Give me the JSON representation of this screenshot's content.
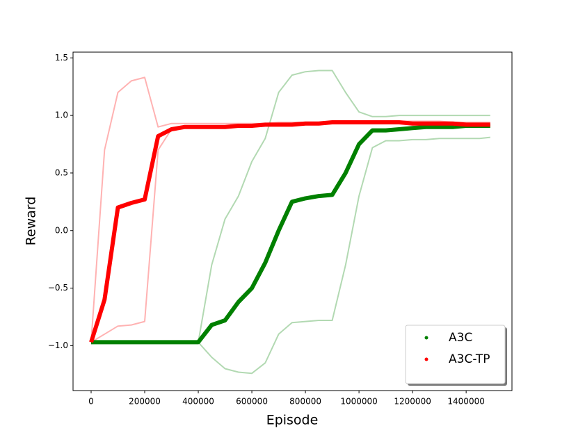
{
  "chart_data": {
    "type": "line",
    "xlabel": "Episode",
    "ylabel": "Reward",
    "x": [
      0,
      50000,
      100000,
      150000,
      200000,
      250000,
      300000,
      350000,
      400000,
      450000,
      500000,
      550000,
      600000,
      650000,
      700000,
      750000,
      800000,
      850000,
      900000,
      950000,
      1000000,
      1050000,
      1100000,
      1150000,
      1200000,
      1250000,
      1300000,
      1350000,
      1400000,
      1450000,
      1490000
    ],
    "series": [
      {
        "name": "A3C",
        "color": "#008000",
        "values": [
          -0.97,
          -0.97,
          -0.97,
          -0.97,
          -0.97,
          -0.97,
          -0.97,
          -0.97,
          -0.97,
          -0.82,
          -0.78,
          -0.62,
          -0.5,
          -0.28,
          0.0,
          0.25,
          0.28,
          0.3,
          0.31,
          0.5,
          0.75,
          0.87,
          0.87,
          0.88,
          0.89,
          0.9,
          0.9,
          0.9,
          0.91,
          0.91,
          0.91
        ],
        "upper": [
          -0.97,
          -0.97,
          -0.97,
          -0.97,
          -0.97,
          -0.97,
          -0.97,
          -0.97,
          -0.97,
          -0.3,
          0.1,
          0.3,
          0.6,
          0.8,
          1.2,
          1.35,
          1.38,
          1.39,
          1.39,
          1.2,
          1.03,
          0.99,
          0.99,
          1.0,
          1.0,
          1.0,
          1.0,
          1.0,
          1.0,
          1.0,
          1.0
        ],
        "lower": [
          -0.97,
          -0.97,
          -0.97,
          -0.97,
          -0.97,
          -0.97,
          -0.97,
          -0.97,
          -0.97,
          -1.1,
          -1.2,
          -1.23,
          -1.24,
          -1.15,
          -0.9,
          -0.8,
          -0.79,
          -0.78,
          -0.78,
          -0.3,
          0.3,
          0.72,
          0.78,
          0.78,
          0.79,
          0.79,
          0.8,
          0.8,
          0.8,
          0.8,
          0.81
        ]
      },
      {
        "name": "A3C-TP",
        "color": "#ff0000",
        "values": [
          -0.97,
          -0.6,
          0.2,
          0.24,
          0.27,
          0.82,
          0.88,
          0.9,
          0.9,
          0.9,
          0.9,
          0.91,
          0.91,
          0.92,
          0.92,
          0.92,
          0.93,
          0.93,
          0.94,
          0.94,
          0.94,
          0.94,
          0.94,
          0.94,
          0.93,
          0.93,
          0.93,
          0.93,
          0.92,
          0.92,
          0.92
        ],
        "upper": [
          -0.97,
          0.7,
          1.2,
          1.3,
          1.33,
          0.9,
          0.93,
          0.93,
          0.93,
          0.93,
          0.93,
          0.93,
          0.93,
          0.93,
          0.94,
          0.94,
          0.94,
          0.94,
          0.95,
          0.95,
          0.95,
          0.95,
          0.95,
          0.95,
          0.95,
          0.95,
          0.95,
          0.94,
          0.94,
          0.94,
          0.94
        ],
        "lower": [
          -0.97,
          -0.9,
          -0.83,
          -0.82,
          -0.79,
          0.7,
          0.88,
          0.9,
          0.9,
          0.9,
          0.9,
          0.9,
          0.9,
          0.91,
          0.91,
          0.91,
          0.92,
          0.92,
          0.93,
          0.93,
          0.93,
          0.93,
          0.93,
          0.93,
          0.92,
          0.92,
          0.92,
          0.92,
          0.91,
          0.91,
          0.91
        ]
      }
    ],
    "xlim": [
      -67500,
      1571000
    ],
    "ylim": [
      -1.39,
      1.55
    ],
    "xticks": [
      0,
      200000,
      400000,
      600000,
      800000,
      1000000,
      1200000,
      1400000
    ],
    "yticks": [
      {
        "value": -1.0,
        "label": "−1.0"
      },
      {
        "value": -0.5,
        "label": "−0.5"
      },
      {
        "value": 0.0,
        "label": "0.0"
      },
      0.5,
      {
        "value": 1.0,
        "label": "1.0"
      },
      1.5
    ],
    "legend": "lower right"
  }
}
